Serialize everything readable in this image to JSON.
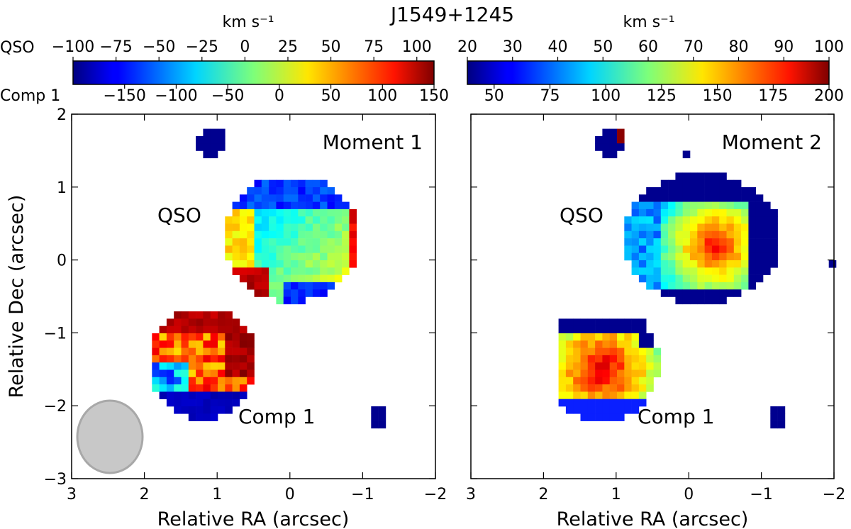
{
  "chart_data": {
    "type": "heatmap",
    "title": "J1549+1245",
    "panels": [
      {
        "label": "Moment 1",
        "xlabel": "Relative RA (arcsec)",
        "ylabel": "Relative Dec (arcsec)",
        "xlim": [
          3,
          -2
        ],
        "ylim": [
          -3,
          2
        ],
        "xticks": [
          "3",
          "2",
          "1",
          "0",
          "−1",
          "−2"
        ],
        "yticks": [
          "−3",
          "−2",
          "−1",
          "0",
          "1",
          "2"
        ],
        "annotations": {
          "qso": "QSO",
          "comp": "Comp 1"
        },
        "beam_ellipse": {
          "ra": 2.45,
          "dec": -2.45,
          "width_arcsec": 0.9,
          "height_arcsec": 1.0
        },
        "colorbar": {
          "unit": "km s⁻¹",
          "qso_label": "QSO",
          "comp_label": "Comp 1",
          "qso_range": [
            -100,
            110
          ],
          "qso_ticks": [
            "−100",
            "−75",
            "−50",
            "−25",
            "0",
            "25",
            "50",
            "75",
            "100"
          ],
          "comp_range": [
            -200,
            150
          ],
          "comp_ticks": [
            "−150",
            "−100",
            "−50",
            "0",
            "50",
            "100",
            "150"
          ]
        }
      },
      {
        "label": "Moment 2",
        "xlabel": "Relative RA (arcsec)",
        "ylabel": "",
        "xlim": [
          3,
          -2
        ],
        "ylim": [
          -3,
          2
        ],
        "xticks": [
          "3",
          "2",
          "1",
          "0",
          "−1",
          "−2"
        ],
        "annotations": {
          "qso": "QSO",
          "comp": "Comp 1"
        },
        "colorbar": {
          "unit": "km s⁻¹",
          "qso_range": [
            20,
            100
          ],
          "qso_ticks": [
            "20",
            "30",
            "40",
            "50",
            "60",
            "70",
            "80",
            "90",
            "100"
          ],
          "comp_range": [
            38,
            200
          ],
          "comp_ticks": [
            "50",
            "75",
            "100",
            "125",
            "150",
            "175",
            "200"
          ]
        }
      }
    ]
  },
  "colors": {
    "beam": "#c8c8c8",
    "beam_edge": "#a8a8a8"
  }
}
